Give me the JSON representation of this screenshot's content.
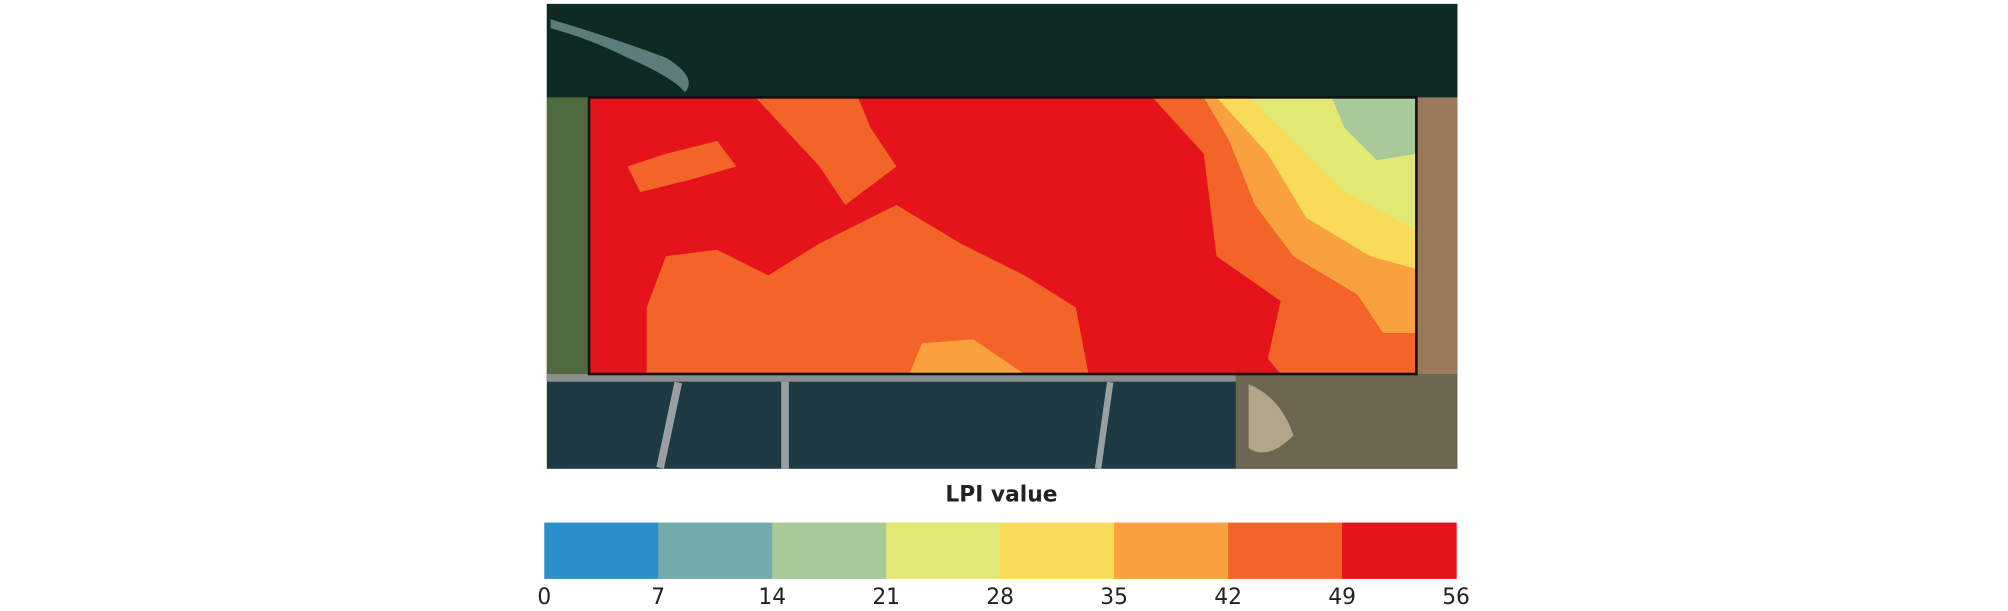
{
  "legend": {
    "title": "LPI value",
    "ticks": [
      0,
      7,
      14,
      21,
      28,
      35,
      42,
      49,
      56
    ],
    "colors": [
      "#2b8fca",
      "#73aaac",
      "#a9c99a",
      "#e1e874",
      "#f8dc57",
      "#f9a13e",
      "#f26427",
      "#e5141b"
    ]
  }
}
